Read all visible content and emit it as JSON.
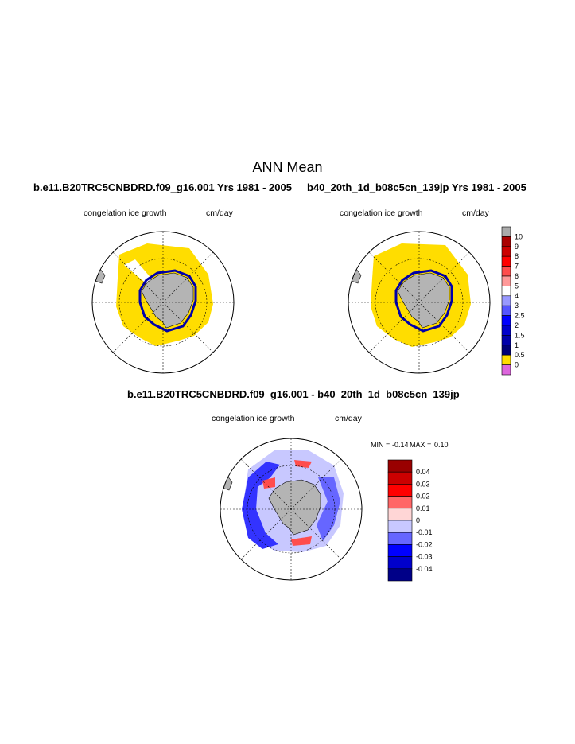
{
  "main_title": "ANN Mean",
  "panels": [
    {
      "case_title": "b.e11.B20TRC5CNBDRD.f09_g16.001  Yrs 1981 - 2005",
      "variable": "congelation ice growth",
      "units": "cm/day"
    },
    {
      "case_title": "b40_20th_1d_b08c5cn_139jp  Yrs 1981 - 2005",
      "variable": "congelation ice growth",
      "units": "cm/day"
    },
    {
      "case_title": "b.e11.B20TRC5CNBDRD.f09_g16.001 - b40_20th_1d_b08c5cn_139jp",
      "variable": "congelation ice growth",
      "units": "cm/day",
      "min_label": "MIN =",
      "min_value": "-0.14",
      "max_label": "MAX =",
      "max_value": "0.10"
    }
  ],
  "colorbar_top": {
    "labels": [
      "10",
      "9",
      "8",
      "7",
      "6",
      "5",
      "4",
      "3",
      "2.5",
      "2",
      "1.5",
      "1",
      "0.5",
      "0"
    ],
    "colors": [
      "#aaaaaa",
      "#aa0000",
      "#cc0000",
      "#ff0000",
      "#ff4d4d",
      "#ff9999",
      "#ffffff",
      "#9999ff",
      "#5555ff",
      "#0000ff",
      "#0000cc",
      "#0000aa",
      "#000077",
      "#ffdd00",
      "#dd66dd"
    ]
  },
  "colorbar_diff": {
    "labels": [
      "0.04",
      "0.03",
      "0.02",
      "0.01",
      "0",
      "-0.01",
      "-0.02",
      "-0.03",
      "-0.04"
    ],
    "colors": [
      "#990000",
      "#cc0000",
      "#ff0000",
      "#ff6666",
      "#ffd6d6",
      "#c8c8ff",
      "#6666ff",
      "#0000ff",
      "#0000cc",
      "#000088"
    ]
  },
  "map_colors": {
    "land": "#b4b4b4",
    "ice_growth_low": "#ffdd00",
    "ice_growth_high": "#0000aa"
  }
}
